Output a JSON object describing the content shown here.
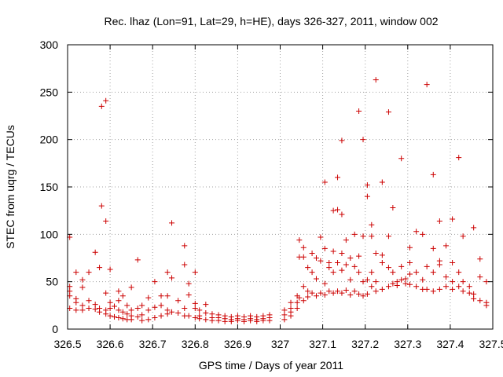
{
  "chart_data": {
    "type": "scatter",
    "title": "Rec. lhaz (Lon=91, Lat=29, h=HE), days 326-327, 2011, window 002",
    "xlabel": "GPS time / Days of year 2011",
    "ylabel": "STEC from uqrg / TECUs",
    "xlim": [
      326.5,
      327.5
    ],
    "ylim": [
      0,
      300
    ],
    "xticks": [
      326.5,
      326.6,
      326.7,
      326.8,
      326.9,
      327,
      327.1,
      327.2,
      327.3,
      327.4,
      327.5
    ],
    "xtick_labels": [
      "326.5",
      "326.6",
      "326.7",
      "326.8",
      "326.9",
      "327",
      "327.1",
      "327.2",
      "327.3",
      "327.4",
      "327.5"
    ],
    "yticks": [
      0,
      50,
      100,
      150,
      200,
      250,
      300
    ],
    "ytick_labels": [
      "0",
      "50",
      "100",
      "150",
      "200",
      "250",
      "300"
    ],
    "grid": true,
    "legend": "none",
    "marker": "+",
    "colors": {
      "points": "#cc0000",
      "axes": "#000000",
      "grid": "#a0a0a0"
    },
    "points": [
      [
        326.505,
        97
      ],
      [
        326.505,
        45
      ],
      [
        326.505,
        40
      ],
      [
        326.505,
        35
      ],
      [
        326.505,
        22
      ],
      [
        326.52,
        60
      ],
      [
        326.52,
        32
      ],
      [
        326.52,
        28
      ],
      [
        326.52,
        20
      ],
      [
        326.535,
        52
      ],
      [
        326.535,
        44
      ],
      [
        326.535,
        25
      ],
      [
        326.535,
        20
      ],
      [
        326.55,
        60
      ],
      [
        326.55,
        30
      ],
      [
        326.55,
        22
      ],
      [
        326.565,
        81
      ],
      [
        326.565,
        26
      ],
      [
        326.565,
        21
      ],
      [
        326.575,
        65
      ],
      [
        326.575,
        22
      ],
      [
        326.575,
        18
      ],
      [
        326.58,
        235
      ],
      [
        326.58,
        130
      ],
      [
        326.59,
        241
      ],
      [
        326.59,
        114
      ],
      [
        326.59,
        38
      ],
      [
        326.59,
        20
      ],
      [
        326.59,
        16
      ],
      [
        326.6,
        63
      ],
      [
        326.6,
        28
      ],
      [
        326.6,
        22
      ],
      [
        326.6,
        14
      ],
      [
        326.61,
        24
      ],
      [
        326.61,
        13
      ],
      [
        326.62,
        40
      ],
      [
        326.62,
        30
      ],
      [
        326.62,
        20
      ],
      [
        326.62,
        12
      ],
      [
        326.63,
        35
      ],
      [
        326.63,
        18
      ],
      [
        326.63,
        11
      ],
      [
        326.64,
        25
      ],
      [
        326.64,
        16
      ],
      [
        326.64,
        10
      ],
      [
        326.65,
        44
      ],
      [
        326.65,
        20
      ],
      [
        326.65,
        14
      ],
      [
        326.65,
        10
      ],
      [
        326.665,
        73
      ],
      [
        326.665,
        22
      ],
      [
        326.665,
        13
      ],
      [
        326.675,
        25
      ],
      [
        326.675,
        15
      ],
      [
        326.675,
        9
      ],
      [
        326.69,
        33
      ],
      [
        326.69,
        20
      ],
      [
        326.69,
        10
      ],
      [
        326.705,
        50
      ],
      [
        326.705,
        23
      ],
      [
        326.705,
        12
      ],
      [
        326.72,
        35
      ],
      [
        326.72,
        25
      ],
      [
        326.72,
        14
      ],
      [
        326.735,
        60
      ],
      [
        326.735,
        35
      ],
      [
        326.735,
        20
      ],
      [
        326.735,
        16
      ],
      [
        326.745,
        112
      ],
      [
        326.745,
        54
      ],
      [
        326.745,
        18
      ],
      [
        326.76,
        30
      ],
      [
        326.76,
        17
      ],
      [
        326.775,
        88
      ],
      [
        326.775,
        68
      ],
      [
        326.775,
        22
      ],
      [
        326.775,
        14
      ],
      [
        326.785,
        48
      ],
      [
        326.785,
        36
      ],
      [
        326.785,
        14
      ],
      [
        326.8,
        60
      ],
      [
        326.8,
        27
      ],
      [
        326.8,
        22
      ],
      [
        326.8,
        12
      ],
      [
        326.81,
        20
      ],
      [
        326.81,
        14
      ],
      [
        326.81,
        11
      ],
      [
        326.825,
        26
      ],
      [
        326.825,
        17
      ],
      [
        326.825,
        10
      ],
      [
        326.84,
        16
      ],
      [
        326.84,
        12
      ],
      [
        326.84,
        9
      ],
      [
        326.855,
        15
      ],
      [
        326.855,
        12
      ],
      [
        326.855,
        9
      ],
      [
        326.87,
        14
      ],
      [
        326.87,
        11
      ],
      [
        326.87,
        8
      ],
      [
        326.885,
        13
      ],
      [
        326.885,
        10
      ],
      [
        326.885,
        8
      ],
      [
        326.9,
        14
      ],
      [
        326.9,
        11
      ],
      [
        326.9,
        9
      ],
      [
        326.915,
        13
      ],
      [
        326.915,
        10
      ],
      [
        326.915,
        8
      ],
      [
        326.93,
        14
      ],
      [
        326.93,
        11
      ],
      [
        326.93,
        9
      ],
      [
        326.945,
        13
      ],
      [
        326.945,
        10
      ],
      [
        326.945,
        8
      ],
      [
        326.96,
        14
      ],
      [
        326.96,
        11
      ],
      [
        326.96,
        9
      ],
      [
        326.975,
        15
      ],
      [
        326.975,
        12
      ],
      [
        326.975,
        9
      ],
      [
        327.01,
        20
      ],
      [
        327.01,
        15
      ],
      [
        327.01,
        10
      ],
      [
        327.025,
        28
      ],
      [
        327.025,
        22
      ],
      [
        327.025,
        18
      ],
      [
        327.025,
        14
      ],
      [
        327.04,
        35
      ],
      [
        327.04,
        28
      ],
      [
        327.04,
        22
      ],
      [
        327.045,
        94
      ],
      [
        327.045,
        76
      ],
      [
        327.045,
        33
      ],
      [
        327.055,
        86
      ],
      [
        327.055,
        76
      ],
      [
        327.055,
        45
      ],
      [
        327.055,
        30
      ],
      [
        327.065,
        65
      ],
      [
        327.065,
        40
      ],
      [
        327.065,
        34
      ],
      [
        327.075,
        80
      ],
      [
        327.075,
        60
      ],
      [
        327.075,
        38
      ],
      [
        327.085,
        75
      ],
      [
        327.085,
        53
      ],
      [
        327.085,
        35
      ],
      [
        327.095,
        97
      ],
      [
        327.095,
        72
      ],
      [
        327.095,
        38
      ],
      [
        327.105,
        155
      ],
      [
        327.105,
        85
      ],
      [
        327.105,
        48
      ],
      [
        327.105,
        36
      ],
      [
        327.115,
        70
      ],
      [
        327.115,
        65
      ],
      [
        327.115,
        40
      ],
      [
        327.125,
        125
      ],
      [
        327.125,
        82
      ],
      [
        327.125,
        60
      ],
      [
        327.125,
        38
      ],
      [
        327.135,
        160
      ],
      [
        327.135,
        126
      ],
      [
        327.135,
        70
      ],
      [
        327.135,
        40
      ],
      [
        327.145,
        199
      ],
      [
        327.145,
        121
      ],
      [
        327.145,
        80
      ],
      [
        327.145,
        62
      ],
      [
        327.145,
        38
      ],
      [
        327.155,
        94
      ],
      [
        327.155,
        68
      ],
      [
        327.155,
        41
      ],
      [
        327.165,
        75
      ],
      [
        327.165,
        52
      ],
      [
        327.165,
        36
      ],
      [
        327.175,
        100
      ],
      [
        327.175,
        66
      ],
      [
        327.175,
        40
      ],
      [
        327.185,
        230
      ],
      [
        327.185,
        77
      ],
      [
        327.185,
        60
      ],
      [
        327.185,
        37
      ],
      [
        327.195,
        200
      ],
      [
        327.195,
        98
      ],
      [
        327.195,
        50
      ],
      [
        327.195,
        35
      ],
      [
        327.205,
        152
      ],
      [
        327.205,
        140
      ],
      [
        327.205,
        52
      ],
      [
        327.205,
        37
      ],
      [
        327.215,
        110
      ],
      [
        327.215,
        98
      ],
      [
        327.215,
        60
      ],
      [
        327.215,
        45
      ],
      [
        327.225,
        263
      ],
      [
        327.225,
        80
      ],
      [
        327.225,
        50
      ],
      [
        327.225,
        40
      ],
      [
        327.24,
        155
      ],
      [
        327.24,
        78
      ],
      [
        327.24,
        70
      ],
      [
        327.24,
        42
      ],
      [
        327.255,
        229
      ],
      [
        327.255,
        98
      ],
      [
        327.255,
        65
      ],
      [
        327.255,
        45
      ],
      [
        327.265,
        128
      ],
      [
        327.265,
        60
      ],
      [
        327.265,
        48
      ],
      [
        327.275,
        50
      ],
      [
        327.275,
        46
      ],
      [
        327.285,
        180
      ],
      [
        327.285,
        66
      ],
      [
        327.285,
        52
      ],
      [
        327.295,
        53
      ],
      [
        327.295,
        48
      ],
      [
        327.305,
        86
      ],
      [
        327.305,
        70
      ],
      [
        327.305,
        58
      ],
      [
        327.305,
        47
      ],
      [
        327.32,
        103
      ],
      [
        327.32,
        60
      ],
      [
        327.32,
        45
      ],
      [
        327.335,
        100
      ],
      [
        327.335,
        52
      ],
      [
        327.335,
        42
      ],
      [
        327.345,
        258
      ],
      [
        327.345,
        66
      ],
      [
        327.345,
        42
      ],
      [
        327.36,
        163
      ],
      [
        327.36,
        85
      ],
      [
        327.36,
        60
      ],
      [
        327.36,
        40
      ],
      [
        327.375,
        114
      ],
      [
        327.375,
        72
      ],
      [
        327.375,
        68
      ],
      [
        327.375,
        42
      ],
      [
        327.39,
        88
      ],
      [
        327.39,
        55
      ],
      [
        327.39,
        45
      ],
      [
        327.405,
        116
      ],
      [
        327.405,
        70
      ],
      [
        327.405,
        50
      ],
      [
        327.405,
        42
      ],
      [
        327.42,
        181
      ],
      [
        327.42,
        60
      ],
      [
        327.42,
        45
      ],
      [
        327.43,
        98
      ],
      [
        327.43,
        50
      ],
      [
        327.43,
        40
      ],
      [
        327.445,
        45
      ],
      [
        327.445,
        38
      ],
      [
        327.455,
        107
      ],
      [
        327.455,
        37
      ],
      [
        327.455,
        32
      ],
      [
        327.47,
        74
      ],
      [
        327.47,
        55
      ],
      [
        327.47,
        30
      ],
      [
        327.485,
        50
      ],
      [
        327.485,
        28
      ],
      [
        327.485,
        25
      ]
    ]
  }
}
